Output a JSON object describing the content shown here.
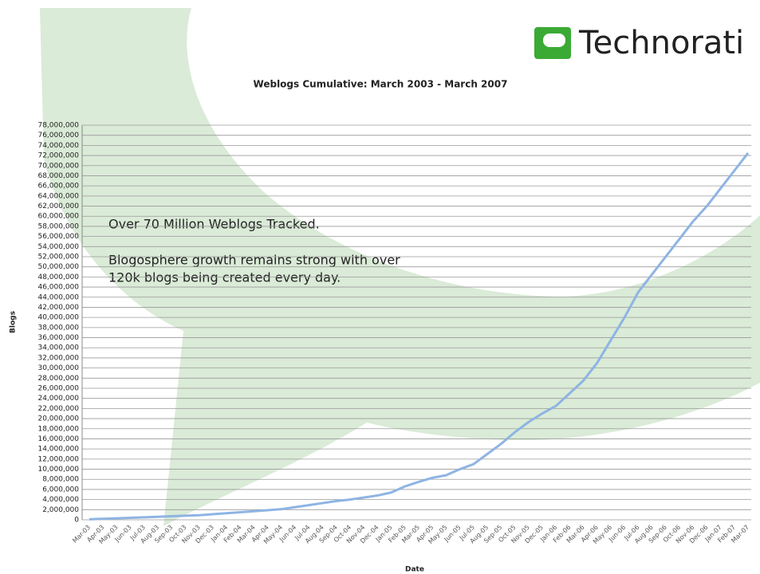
{
  "chart_data": {
    "type": "line",
    "brand": "Technorati",
    "title": "Weblogs Cumulative: March 2003 - March 2007",
    "annotations": [
      "Over 70 Million Weblogs Tracked.",
      "Blogosphere growth remains strong with over",
      "120k blogs being created every day."
    ],
    "x_label": "Date",
    "y_label": "Blogs",
    "categories": [
      "Mar-03",
      "Apr-03",
      "May-03",
      "Jun-03",
      "Jul-03",
      "Aug-03",
      "Sep-03",
      "Oct-03",
      "Nov-03",
      "Dec-03",
      "Jan-04",
      "Feb-04",
      "Mar-04",
      "Apr-04",
      "May-04",
      "Jun-04",
      "Jul-04",
      "Aug-04",
      "Sep-04",
      "Oct-04",
      "Nov-04",
      "Dec-04",
      "Jan-05",
      "Feb-05",
      "Mar-05",
      "Apr-05",
      "May-05",
      "Jun-05",
      "Jul-05",
      "Aug-05",
      "Sep-05",
      "Oct-05",
      "Nov-05",
      "Dec-05",
      "Jan-06",
      "Feb-06",
      "Mar-06",
      "Apr-06",
      "May-06",
      "Jun-06",
      "Jul-06",
      "Aug-06",
      "Sep-06",
      "Oct-06",
      "Nov-06",
      "Dec-06",
      "Jan-07",
      "Feb-07",
      "Mar-07"
    ],
    "series": [
      {
        "name": "Blogs",
        "color": "#8eb4e3",
        "values": [
          100000,
          200000,
          300000,
          400000,
          500000,
          600000,
          700000,
          800000,
          900000,
          1100000,
          1300000,
          1500000,
          1700000,
          1900000,
          2100000,
          2500000,
          2900000,
          3300000,
          3700000,
          4000000,
          4400000,
          4800000,
          5400000,
          6600000,
          7500000,
          8300000,
          8800000,
          10000000,
          11000000,
          13000000,
          15000000,
          17300000,
          19300000,
          21000000,
          22500000,
          25000000,
          27500000,
          31000000,
          35500000,
          40000000,
          45000000,
          48500000,
          52000000,
          55500000,
          59000000,
          62000000,
          65500000,
          69000000,
          72500000
        ]
      }
    ],
    "ylim": [
      0,
      78000000
    ],
    "yticks": [
      0,
      {
        "value": 2000000,
        "label": "2,000,000"
      },
      {
        "value": 4000000,
        "label": "4,000,000"
      },
      {
        "value": 6000000,
        "label": "6,000,000"
      },
      {
        "value": 8000000,
        "label": "8,000,000"
      },
      {
        "value": 10000000,
        "label": "10,000,000"
      },
      {
        "value": 12000000,
        "label": "12,000,000"
      },
      {
        "value": 14000000,
        "label": "14,000,000"
      },
      {
        "value": 16000000,
        "label": "16,000,000"
      },
      {
        "value": 18000000,
        "label": "18,000,000"
      },
      {
        "value": 20000000,
        "label": "20,000,000"
      },
      {
        "value": 22000000,
        "label": "22,000,000"
      },
      {
        "value": 24000000,
        "label": "24,000,000"
      },
      {
        "value": 26000000,
        "label": "26,000,000"
      },
      {
        "value": 28000000,
        "label": "28,000,000"
      },
      {
        "value": 30000000,
        "label": "30,000,000"
      },
      {
        "value": 32000000,
        "label": "32,000,000"
      },
      {
        "value": 34000000,
        "label": "34,000,000"
      },
      {
        "value": 36000000,
        "label": "36,000,000"
      },
      {
        "value": 38000000,
        "label": "38,000,000"
      },
      {
        "value": 40000000,
        "label": "40,000,000"
      },
      {
        "value": 42000000,
        "label": "42,000,000"
      },
      {
        "value": 44000000,
        "label": "44,000,000"
      },
      {
        "value": 46000000,
        "label": "46,000,000"
      },
      {
        "value": 48000000,
        "label": "48,000,000"
      },
      {
        "value": 50000000,
        "label": "50,000,000"
      },
      {
        "value": 52000000,
        "label": "52,000,000"
      },
      {
        "value": 54000000,
        "label": "54,000,000"
      },
      {
        "value": 56000000,
        "label": "56,000,000"
      },
      {
        "value": 58000000,
        "label": "58,000,000"
      },
      {
        "value": 60000000,
        "label": "60,000,000"
      },
      {
        "value": 62000000,
        "label": "62,000,000"
      },
      {
        "value": 64000000,
        "label": "64,000,000"
      },
      {
        "value": 66000000,
        "label": "66,000,000"
      },
      {
        "value": 68000000,
        "label": "68,000,000"
      },
      {
        "value": 70000000,
        "label": "70,000,000"
      },
      {
        "value": 72000000,
        "label": "72,000,000"
      },
      {
        "value": 74000000,
        "label": "74,000,000"
      },
      {
        "value": 76000000,
        "label": "76,000,000"
      },
      {
        "value": 78000000,
        "label": "78,000,000"
      }
    ],
    "grid": true
  }
}
